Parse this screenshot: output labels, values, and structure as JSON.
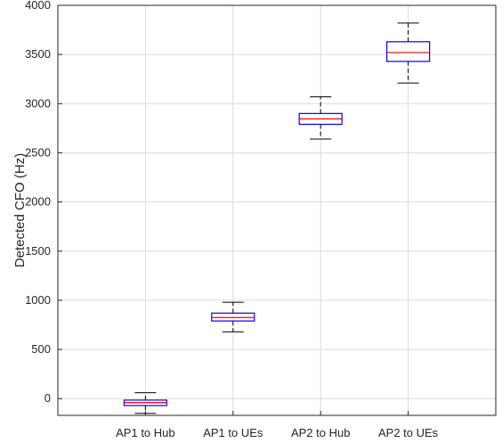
{
  "chart_data": {
    "type": "boxplot",
    "title": "",
    "xlabel": "",
    "ylabel": "Detected CFO (Hz)",
    "ylim": [
      -170,
      4000
    ],
    "yticks": [
      0,
      500,
      1000,
      1500,
      2000,
      2500,
      3000,
      3500,
      4000
    ],
    "grid": true,
    "categories": [
      "AP1 to Hub",
      "AP1 to UEs",
      "AP2 to Hub",
      "AP2 to UEs"
    ],
    "boxes": [
      {
        "whisker_low": -150,
        "q1": -70,
        "median": -40,
        "q3": -15,
        "whisker_high": 60
      },
      {
        "whisker_low": 680,
        "q1": 790,
        "median": 825,
        "q3": 870,
        "whisker_high": 980
      },
      {
        "whisker_low": 2640,
        "q1": 2790,
        "median": 2845,
        "q3": 2900,
        "whisker_high": 3070
      },
      {
        "whisker_low": 3210,
        "q1": 3430,
        "median": 3520,
        "q3": 3630,
        "whisker_high": 3820
      }
    ],
    "colors": {
      "box": "#0000ff",
      "median": "#ff0000",
      "whisker": "#000000",
      "grid": "#dcdcdc",
      "axis": "#262626"
    }
  }
}
